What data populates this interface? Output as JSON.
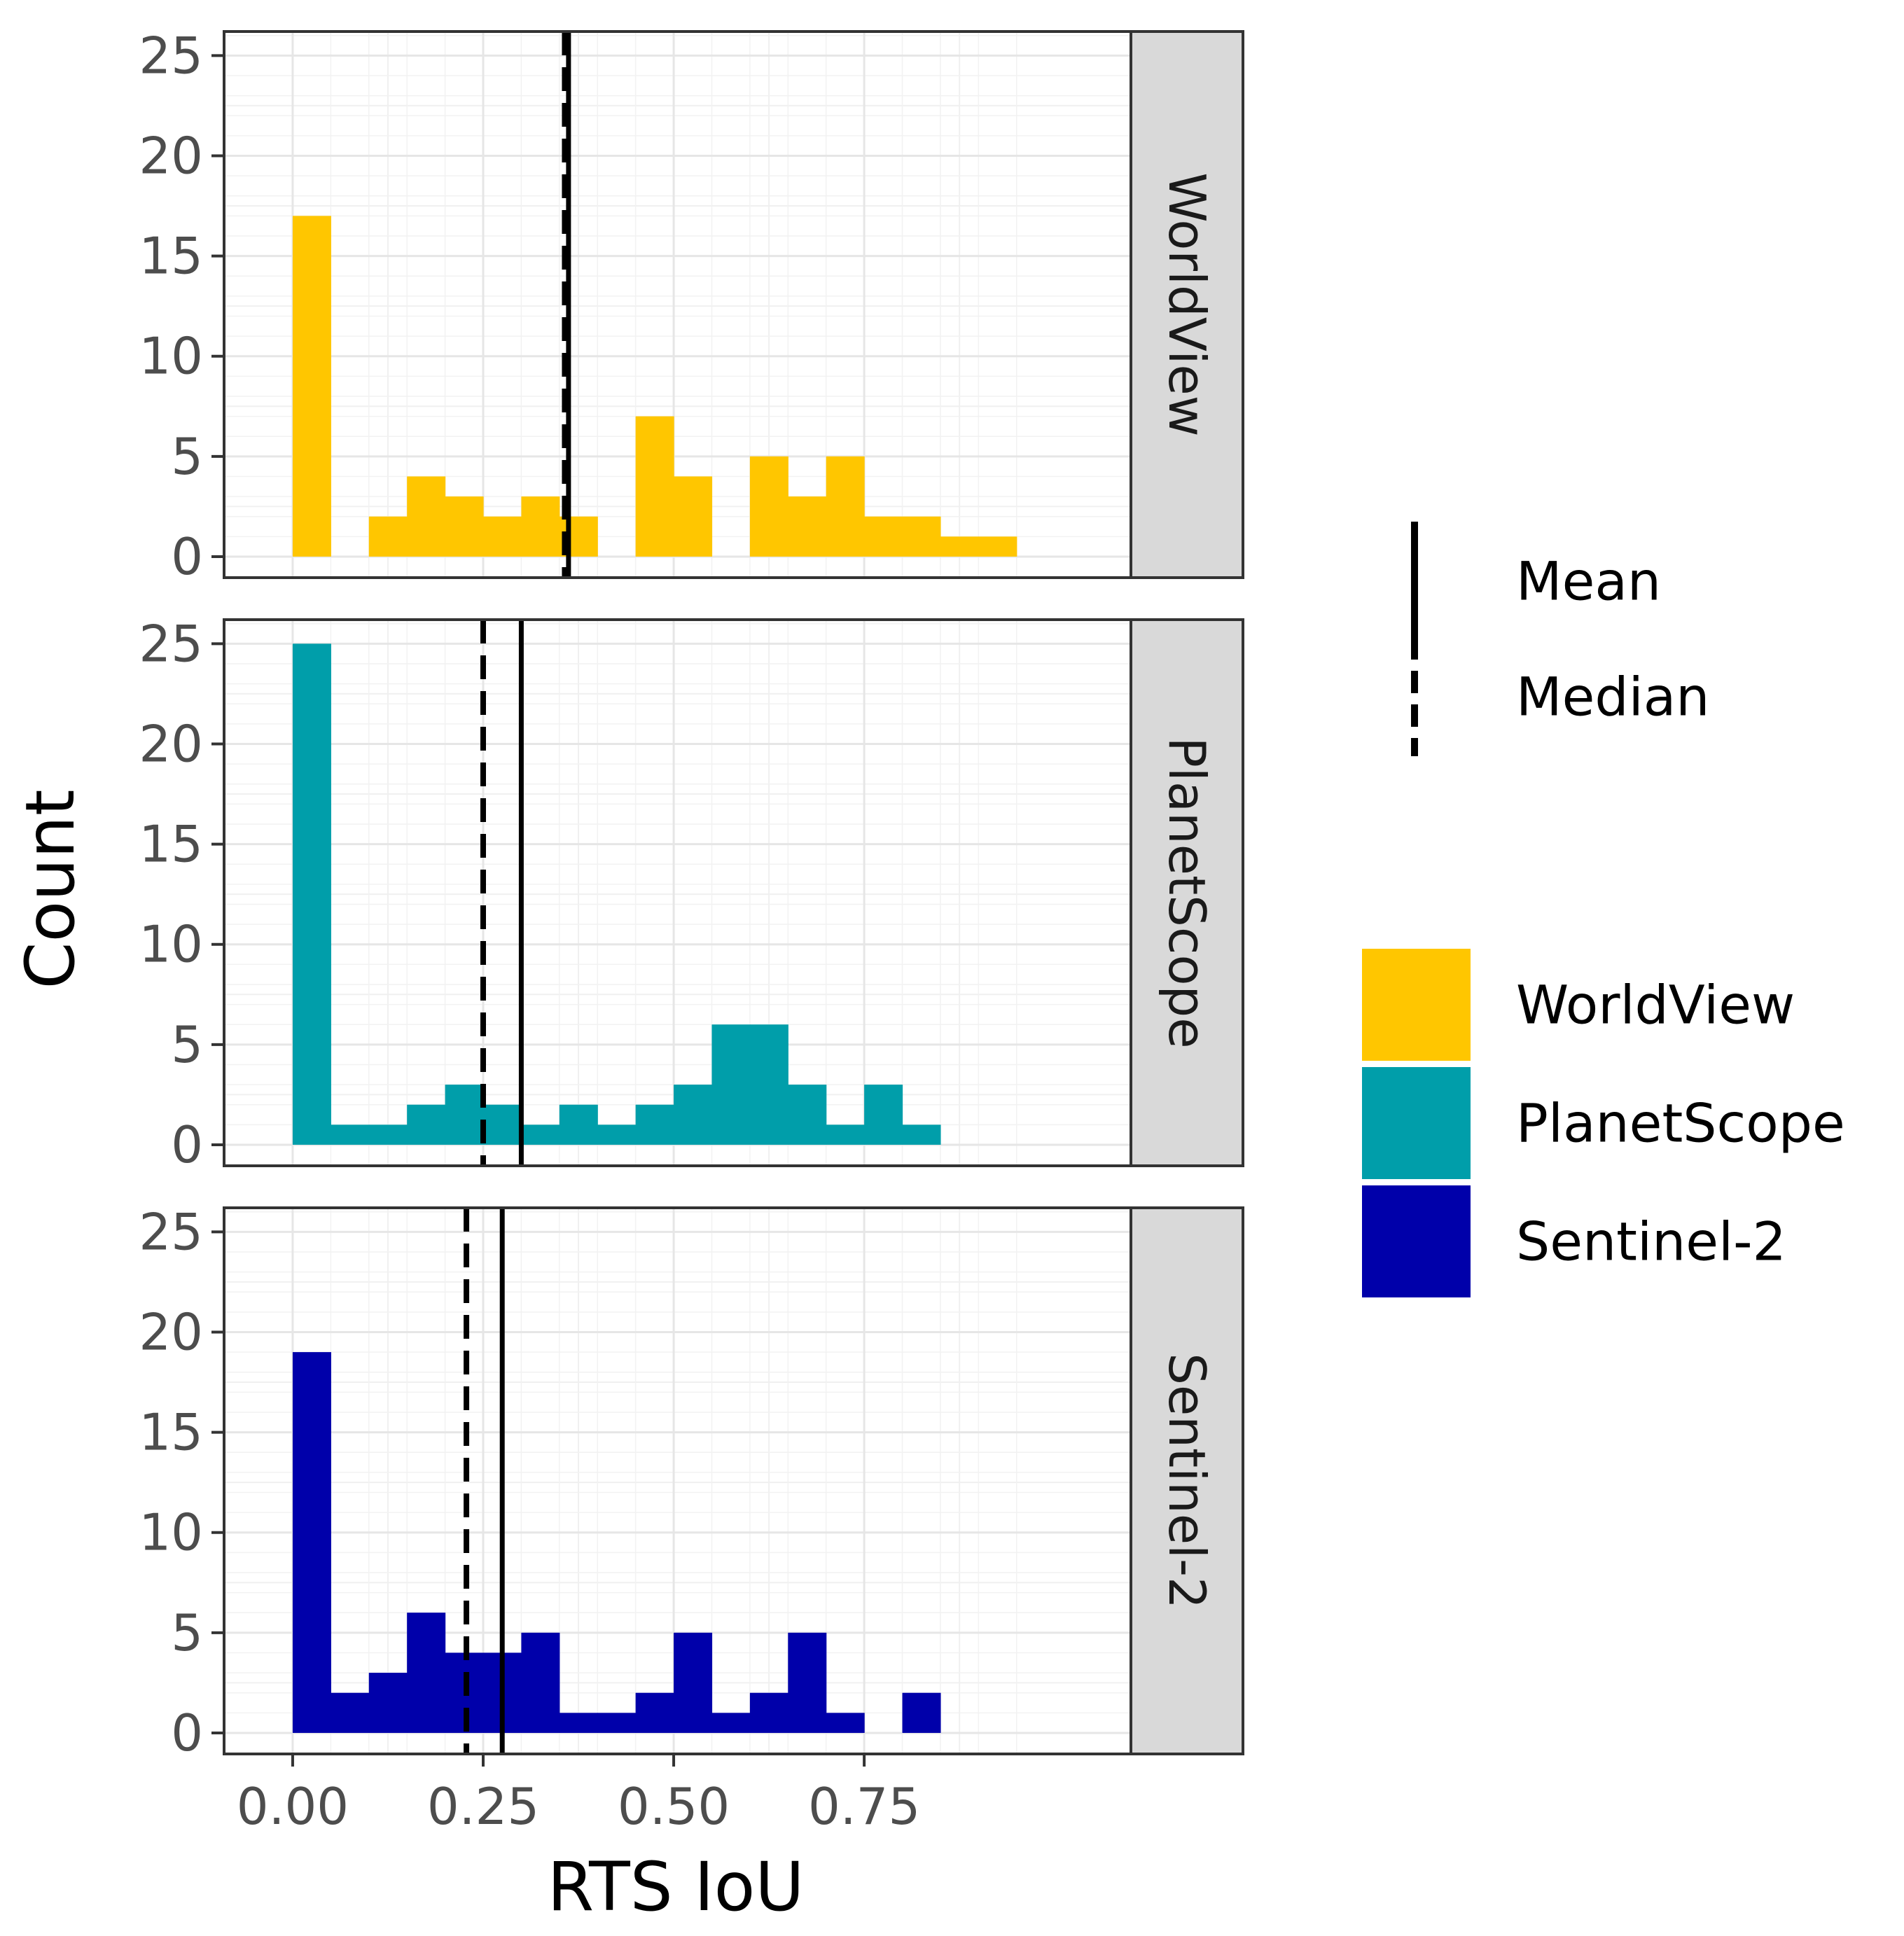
{
  "chart_data": {
    "type": "histogram",
    "xlabel": "RTS IoU",
    "ylabel": "Count",
    "xlim": [
      -0.09,
      1.1
    ],
    "ylim": [
      -1.05,
      26.2
    ],
    "x_ticks": [
      0,
      0.25,
      0.5,
      0.75
    ],
    "x_tick_labels": [
      "0.00",
      "0.25",
      "0.50",
      "0.75"
    ],
    "y_ticks": [
      0,
      5,
      10,
      15,
      20,
      25
    ],
    "y_tick_labels": [
      "0",
      "5",
      "10",
      "15",
      "20",
      "25"
    ],
    "bin_width": 0.05,
    "bin_starts": [
      0,
      0.05,
      0.1,
      0.15,
      0.2,
      0.25,
      0.3,
      0.35,
      0.4,
      0.45,
      0.5,
      0.55,
      0.6,
      0.65,
      0.7,
      0.75,
      0.8,
      0.85,
      0.9,
      0.95
    ],
    "panels": [
      {
        "name": "WorldView",
        "color": "#FFC600",
        "counts": [
          17,
          0,
          2,
          4,
          3,
          2,
          3,
          2,
          0,
          7,
          4,
          0,
          5,
          3,
          5,
          2,
          2,
          1,
          1,
          0
        ],
        "mean": 0.362,
        "median": 0.357
      },
      {
        "name": "PlanetScope",
        "color": "#009EAA",
        "counts": [
          25,
          1,
          1,
          2,
          3,
          2,
          1,
          2,
          1,
          2,
          3,
          6,
          6,
          3,
          1,
          3,
          1,
          0,
          0,
          0
        ],
        "mean": 0.3,
        "median": 0.25
      },
      {
        "name": "Sentinel-2",
        "color": "#0000AA",
        "counts": [
          19,
          2,
          3,
          6,
          4,
          4,
          5,
          1,
          1,
          2,
          5,
          1,
          2,
          5,
          1,
          0,
          2,
          0,
          0,
          0
        ],
        "mean": 0.275,
        "median": 0.228
      }
    ],
    "legend": {
      "lines": [
        {
          "label": "Mean",
          "style": "solid"
        },
        {
          "label": "Median",
          "style": "dashed"
        }
      ],
      "fills": [
        {
          "label": "WorldView",
          "color": "#FFC600"
        },
        {
          "label": "PlanetScope",
          "color": "#009EAA"
        },
        {
          "label": "Sentinel-2",
          "color": "#0000AA"
        }
      ]
    }
  }
}
